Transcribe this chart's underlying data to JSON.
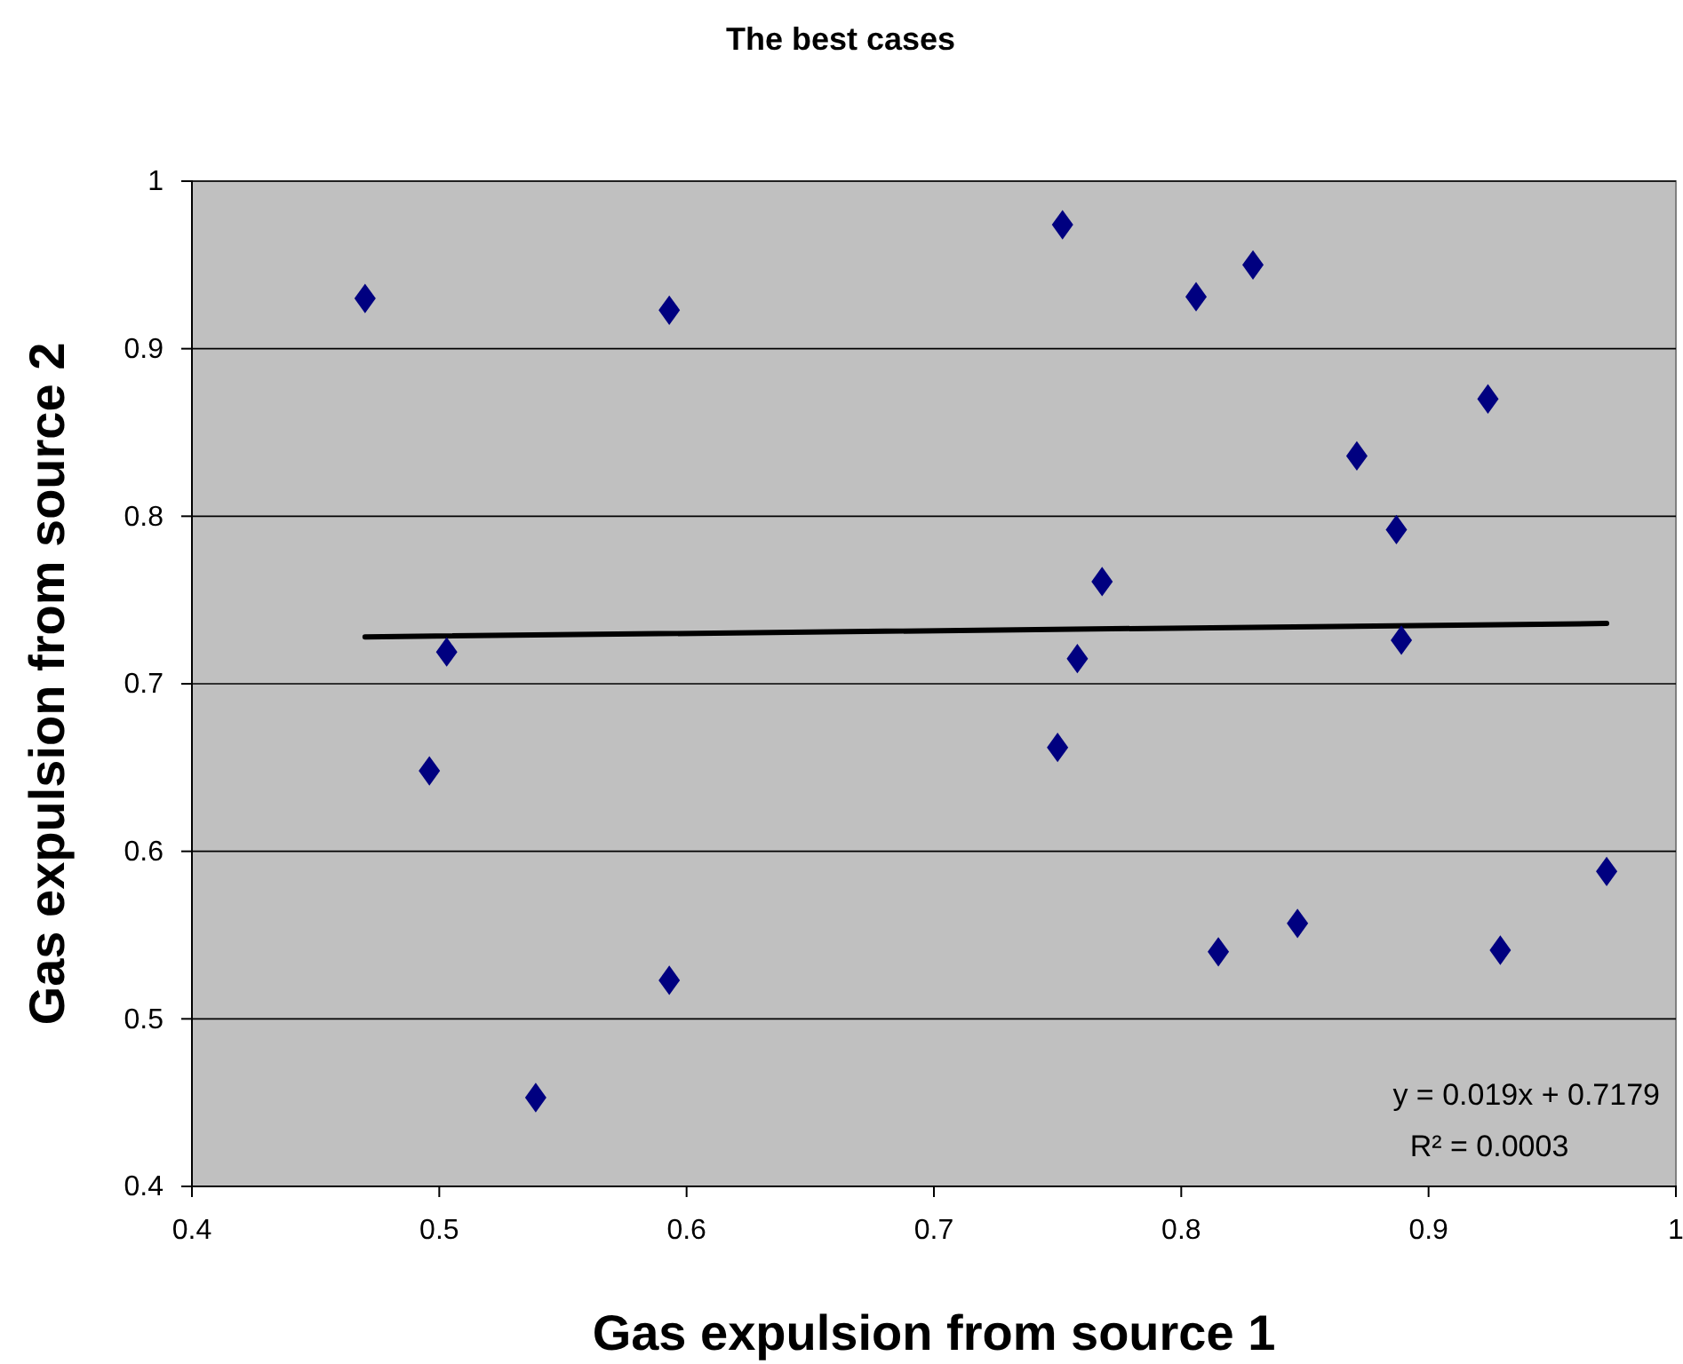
{
  "chart_data": {
    "type": "scatter",
    "title": "The best cases",
    "xlabel": "Gas expulsion from source 1",
    "ylabel": "Gas expulsion from source 2",
    "xlim": [
      0.4,
      1
    ],
    "xticks": [
      0.4,
      0.5,
      0.6,
      0.7,
      0.8,
      0.9,
      1
    ],
    "ylim": [
      0.4,
      1
    ],
    "yticks": [
      0.4,
      0.5,
      0.6,
      0.7,
      0.8,
      0.9,
      1
    ],
    "grid": "y",
    "series": [
      {
        "marker": "diamond",
        "color": "#000080",
        "x": [
          0.47,
          0.593,
          0.503,
          0.496,
          0.593,
          0.539,
          0.752,
          0.806,
          0.829,
          0.924,
          0.871,
          0.887,
          0.768,
          0.889,
          0.758,
          0.75,
          0.972,
          0.847,
          0.815,
          0.929
        ],
        "values": [
          0.93,
          0.923,
          0.719,
          0.648,
          0.523,
          0.453,
          0.974,
          0.931,
          0.95,
          0.87,
          0.836,
          0.792,
          0.761,
          0.726,
          0.715,
          0.662,
          0.588,
          0.557,
          0.54,
          0.541
        ]
      },
      {
        "type": "line",
        "marker": "none",
        "color": "#000000",
        "x": [
          0.47,
          0.972
        ],
        "values": [
          0.728,
          0.736
        ]
      }
    ],
    "annotations": [
      "y = 0.019x + 0.7179",
      "R² = 0.0003"
    ]
  }
}
